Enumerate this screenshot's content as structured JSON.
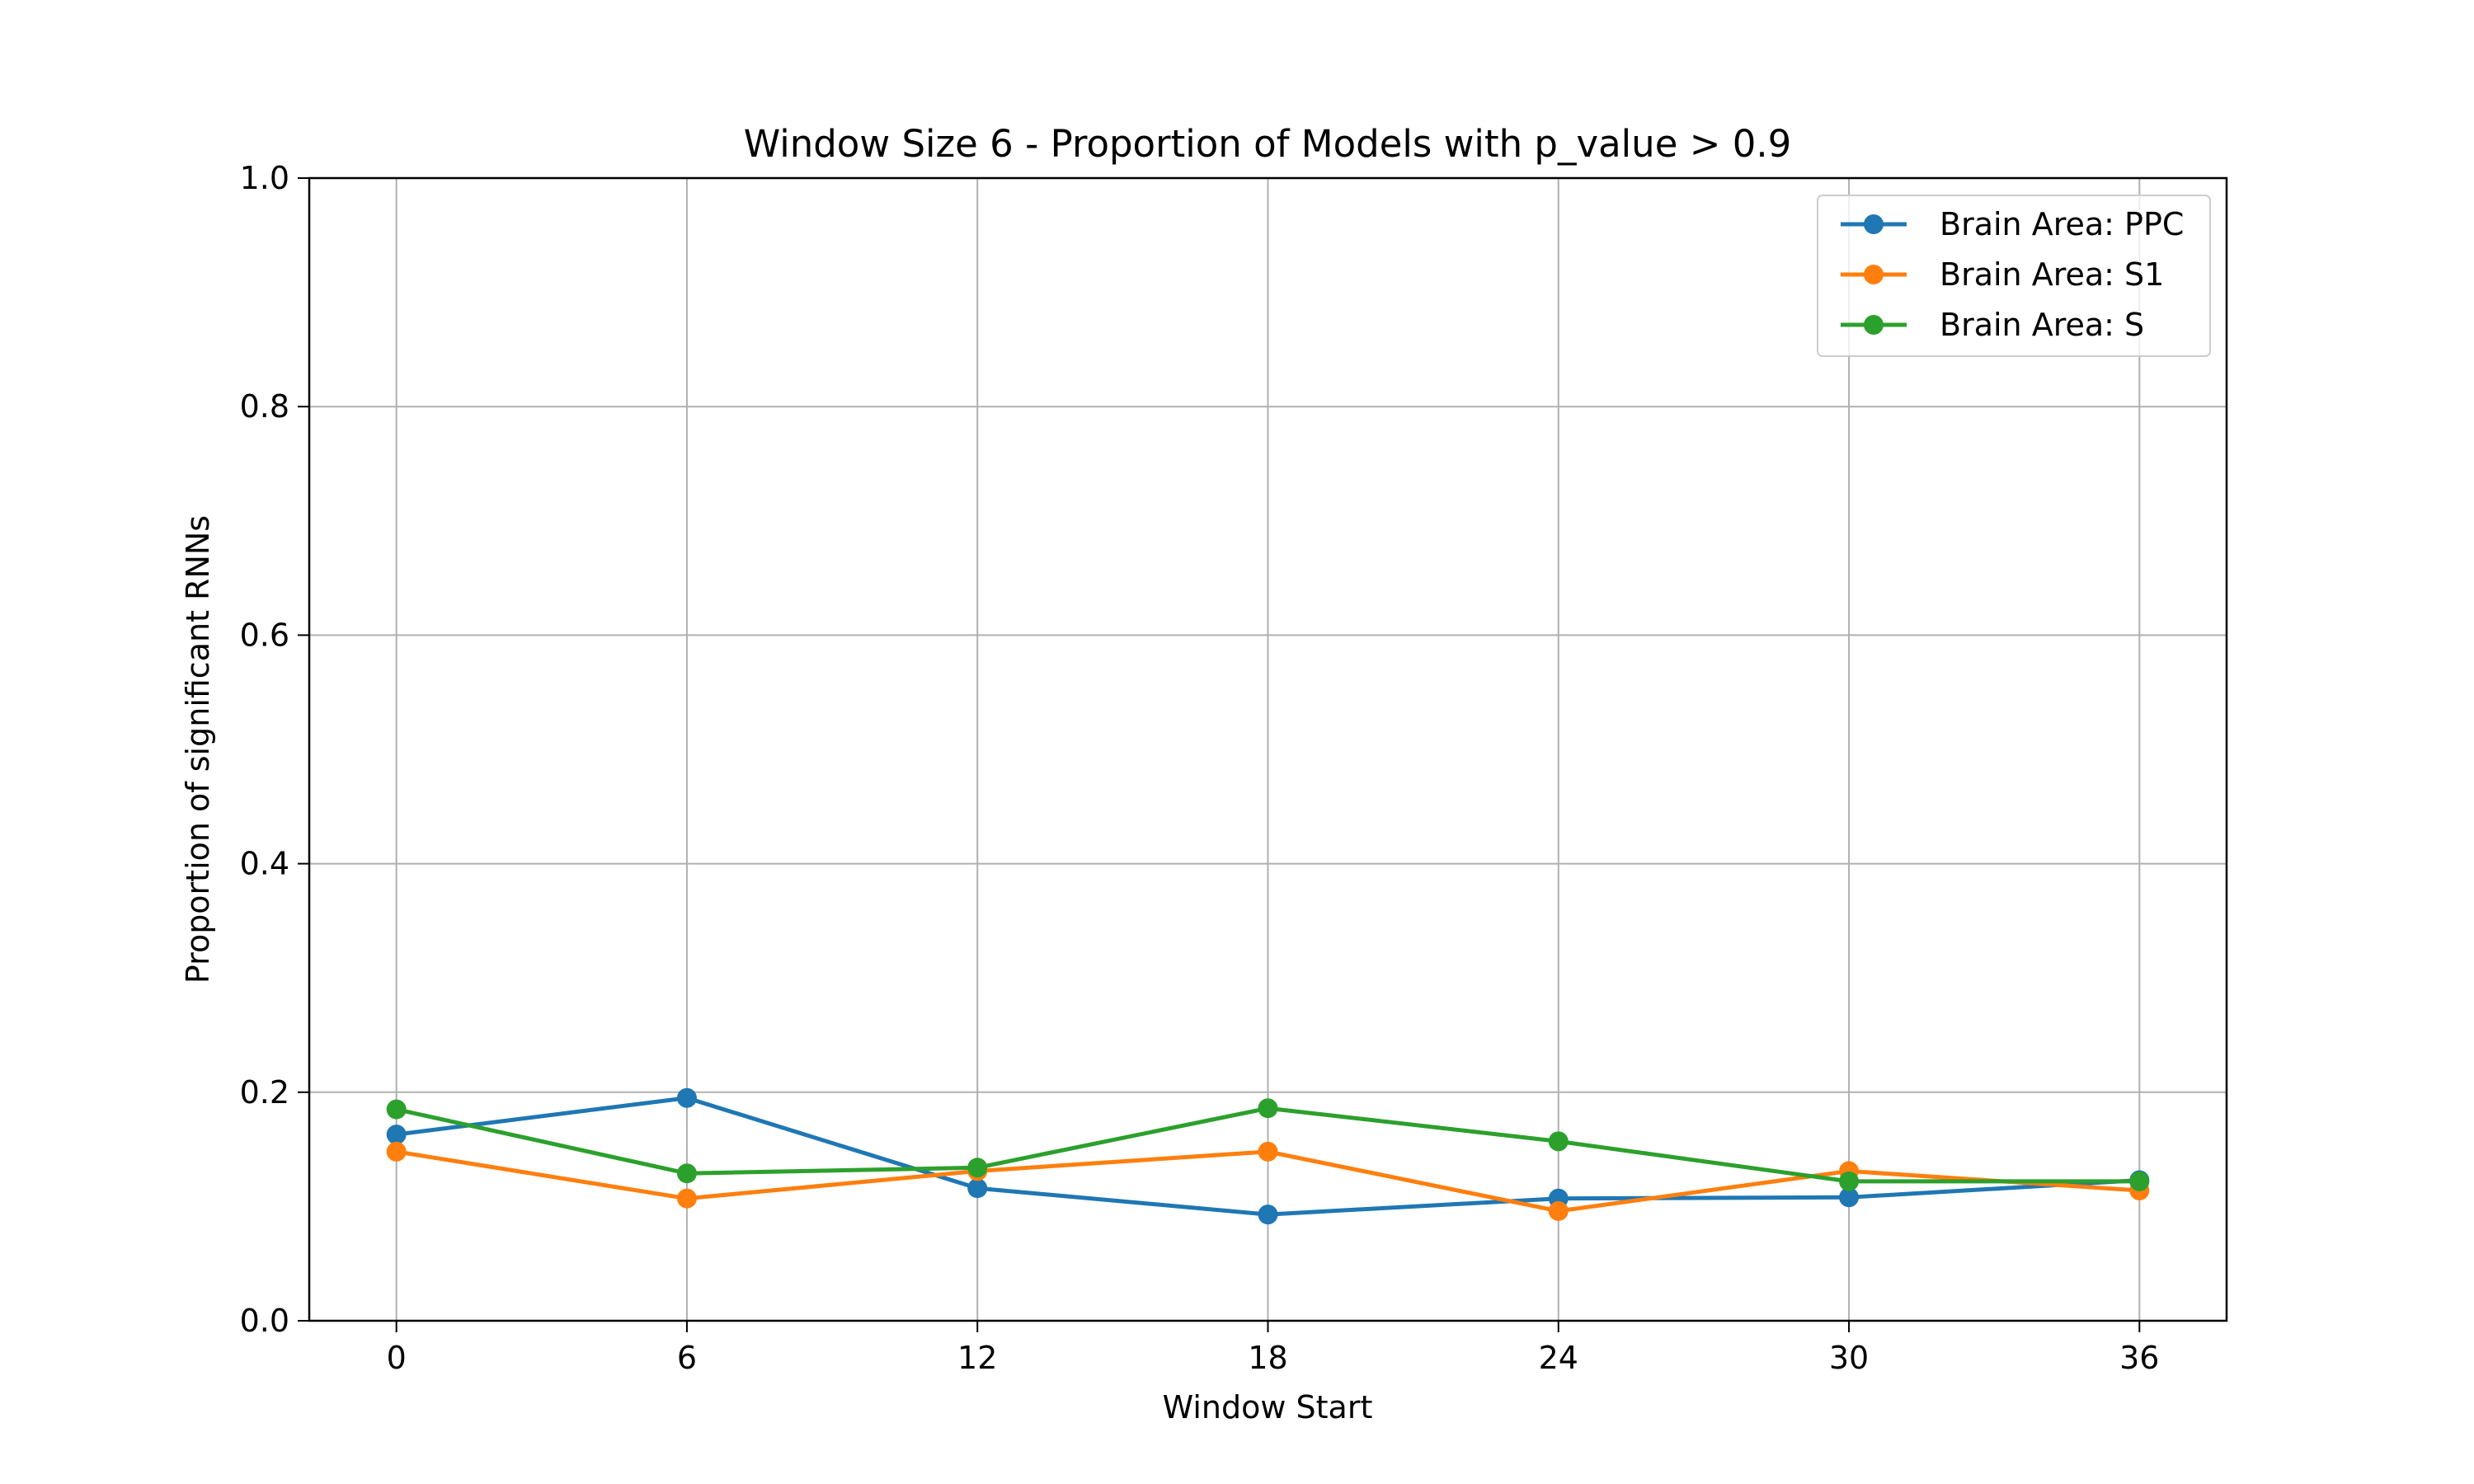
{
  "chart_data": {
    "type": "line",
    "title": "Window Size 6 - Proportion of Models with p_value > 0.9",
    "xlabel": "Window Start",
    "ylabel": "Proportion of significant RNNs",
    "x": [
      0,
      6,
      12,
      18,
      24,
      30,
      36
    ],
    "x_ticks": [
      "0",
      "6",
      "12",
      "18",
      "24",
      "30",
      "36"
    ],
    "y_ticks": [
      "0.0",
      "0.2",
      "0.4",
      "0.6",
      "0.8",
      "1.0"
    ],
    "xlim": [
      -1.8,
      37.8
    ],
    "ylim": [
      0,
      1
    ],
    "grid": true,
    "legend_position": "upper right",
    "series": [
      {
        "name": "Brain Area: PPC",
        "color": "#1f77b4",
        "marker": "circle",
        "values": [
          0.163,
          0.195,
          0.116,
          0.093,
          0.107,
          0.108,
          0.123
        ]
      },
      {
        "name": "Brain Area: S1",
        "color": "#ff7f0e",
        "marker": "circle",
        "values": [
          0.148,
          0.107,
          0.131,
          0.148,
          0.096,
          0.131,
          0.114
        ]
      },
      {
        "name": "Brain Area: S",
        "color": "#2ca02c",
        "marker": "circle",
        "values": [
          0.185,
          0.129,
          0.134,
          0.186,
          0.157,
          0.122,
          0.122
        ]
      }
    ]
  }
}
